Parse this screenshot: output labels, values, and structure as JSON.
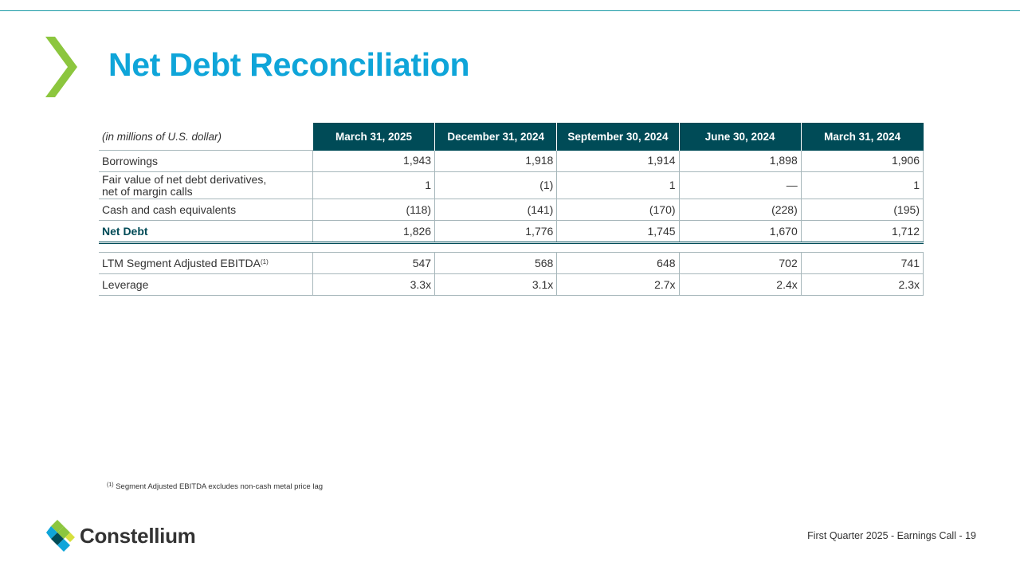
{
  "slide": {
    "title": "Net Debt Reconciliation",
    "accent_color": "#0fa5d9",
    "chevron_color": "#8cc63e",
    "header_color": "#004b57"
  },
  "table": {
    "units_label": "(in millions of U.S. dollar)",
    "columns": [
      "March 31, 2025",
      "December 31, 2024",
      "September 30, 2024",
      "June 30, 2024",
      "March 31, 2024"
    ],
    "rows": [
      {
        "label": "Borrowings",
        "values": [
          "1,943",
          "1,918",
          "1,914",
          "1,898",
          "1,906"
        ]
      },
      {
        "label_line1": "Fair value of net debt derivatives,",
        "label_line2": "net of margin calls",
        "values": [
          "1",
          "(1)",
          "1",
          "—",
          "1"
        ]
      },
      {
        "label": "Cash and cash equivalents",
        "values": [
          "(118)",
          "(141)",
          "(170)",
          "(228)",
          "(195)"
        ]
      },
      {
        "label": "Net Debt",
        "values": [
          "1,826",
          "1,776",
          "1,745",
          "1,670",
          "1,712"
        ]
      },
      {
        "label": "LTM Segment Adjusted EBITDA",
        "footnote_ref": "(1)",
        "values": [
          "547",
          "568",
          "648",
          "702",
          "741"
        ]
      },
      {
        "label": "Leverage",
        "values": [
          "3.3x",
          "3.1x",
          "2.7x",
          "2.4x",
          "2.3x"
        ]
      }
    ]
  },
  "footnote": {
    "marker": "(1)",
    "text": "Segment Adjusted EBITDA excludes non-cash metal price lag"
  },
  "logo": {
    "text": "Constellium"
  },
  "footer": {
    "text": "First Quarter 2025 -  Earnings Call - 19"
  }
}
